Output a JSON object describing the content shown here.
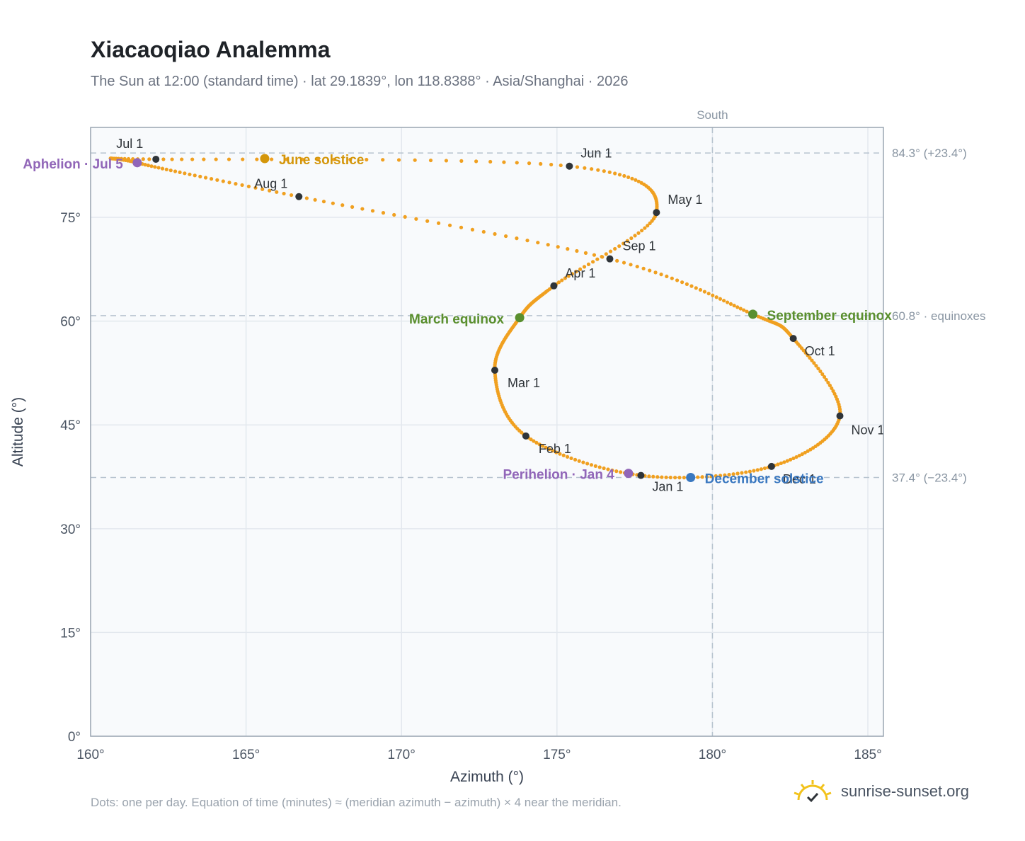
{
  "title": "Xiacaoqiao Analemma",
  "subtitle": "The Sun at 12:00 (standard time) · lat 29.1839°, lon 118.8388° · Asia/Shanghai · 2026",
  "footer_note": "Dots: one per day. Equation of time (minutes) ≈ (meridian azimuth − azimuth) × 4 near the meridian.",
  "brand": "sunrise-sunset.org",
  "brand_icon": "sun-logo-icon",
  "colors": {
    "path": "#f0a020",
    "month_dot": "#2f3439",
    "solstice_june": "#d4960a",
    "solstice_december": "#3a78c0",
    "equinox": "#5a8f2e",
    "apsis": "#9166b8",
    "plot_bg": "#f8fafc",
    "ref_line": "#b7c3cf"
  },
  "chart_data": {
    "type": "scatter",
    "xlabel": "Azimuth (°)",
    "ylabel": "Altitude (°)",
    "xlim": [
      160,
      185.5
    ],
    "ylim": [
      0,
      88
    ],
    "x_ticks": [
      160,
      165,
      170,
      175,
      180,
      185
    ],
    "x_tick_labels": [
      "160°",
      "165°",
      "170°",
      "175°",
      "180°",
      "185°"
    ],
    "y_ticks": [
      0,
      15,
      30,
      45,
      60,
      75
    ],
    "y_tick_labels": [
      "0°",
      "15°",
      "30°",
      "45°",
      "60°",
      "75°"
    ],
    "grid": true,
    "meridian": {
      "azimuth": 180,
      "label": "South"
    },
    "reference_lines": [
      {
        "altitude": 84.3,
        "label": "84.3° (+23.4°)"
      },
      {
        "altitude": 60.8,
        "label": "60.8° · equinoxes"
      },
      {
        "altitude": 37.4,
        "label": "37.4° (−23.4°)"
      }
    ],
    "path_anchors": [
      {
        "x": 177.7,
        "y": 37.7
      },
      {
        "x": 174.0,
        "y": 43.4
      },
      {
        "x": 173.0,
        "y": 52.9
      },
      {
        "x": 173.8,
        "y": 60.5
      },
      {
        "x": 174.9,
        "y": 65.1
      },
      {
        "x": 178.2,
        "y": 75.7
      },
      {
        "x": 175.4,
        "y": 82.4
      },
      {
        "x": 162.1,
        "y": 83.4
      },
      {
        "x": 161.5,
        "y": 82.9
      },
      {
        "x": 166.7,
        "y": 78.0
      },
      {
        "x": 176.7,
        "y": 69.0
      },
      {
        "x": 181.3,
        "y": 61.0
      },
      {
        "x": 182.6,
        "y": 57.5
      },
      {
        "x": 184.1,
        "y": 46.3
      },
      {
        "x": 181.9,
        "y": 39.0
      },
      {
        "x": 177.7,
        "y": 37.7
      }
    ],
    "months": [
      {
        "label": "Jan 1",
        "x": 177.7,
        "y": 37.7
      },
      {
        "label": "Feb 1",
        "x": 174.0,
        "y": 43.4
      },
      {
        "label": "Mar 1",
        "x": 173.0,
        "y": 52.9
      },
      {
        "label": "Apr 1",
        "x": 174.9,
        "y": 65.1
      },
      {
        "label": "May 1",
        "x": 178.2,
        "y": 75.7
      },
      {
        "label": "Jun 1",
        "x": 175.4,
        "y": 82.4
      },
      {
        "label": "Jul 1",
        "x": 162.1,
        "y": 83.4
      },
      {
        "label": "Aug 1",
        "x": 166.7,
        "y": 78.0
      },
      {
        "label": "Sep 1",
        "x": 176.7,
        "y": 69.0
      },
      {
        "label": "Oct 1",
        "x": 182.6,
        "y": 57.5
      },
      {
        "label": "Nov 1",
        "x": 184.1,
        "y": 46.3
      },
      {
        "label": "Dec 1",
        "x": 181.9,
        "y": 39.0
      }
    ],
    "events": [
      {
        "label": "June solstice",
        "x": 165.6,
        "y": 83.5,
        "kind": "solstice_june"
      },
      {
        "label": "December solstice",
        "x": 179.3,
        "y": 37.4,
        "kind": "solstice_december"
      },
      {
        "label": "March equinox",
        "x": 173.8,
        "y": 60.5,
        "kind": "equinox"
      },
      {
        "label": "September equinox",
        "x": 181.3,
        "y": 61.0,
        "kind": "equinox"
      },
      {
        "label": "Aphelion · Jul 5",
        "x": 161.5,
        "y": 82.9,
        "kind": "apsis"
      },
      {
        "label": "Perihelion · Jan 4",
        "x": 177.3,
        "y": 38.0,
        "kind": "apsis"
      }
    ]
  }
}
